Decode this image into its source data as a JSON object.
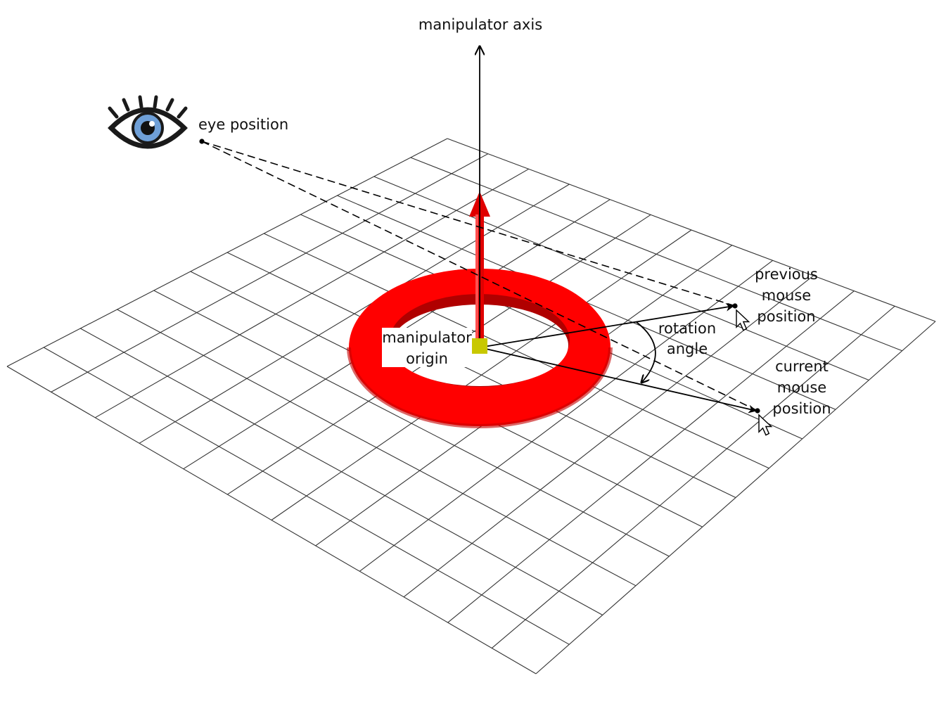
{
  "diagram": {
    "labels": {
      "manipulator_axis": "manipulator axis",
      "eye_position": "eye position",
      "manipulator_origin": [
        "manipulator",
        "origin"
      ],
      "rotation_angle": [
        "rotation",
        "angle"
      ],
      "previous_mouse_position": [
        "previous",
        "mouse",
        "position"
      ],
      "current_mouse_position": [
        "current",
        "mouse",
        "position"
      ]
    },
    "colors": {
      "torus": "#ff0000",
      "axis_arrow": "#e00000",
      "origin_marker": "#c8c800",
      "grid_lines": "#333333",
      "lines": "#000000",
      "eye_iris": "#6fa0d8"
    },
    "grid": {
      "divisions": 12
    },
    "icons": [
      "eye-icon",
      "mouse-cursor-icon"
    ]
  }
}
